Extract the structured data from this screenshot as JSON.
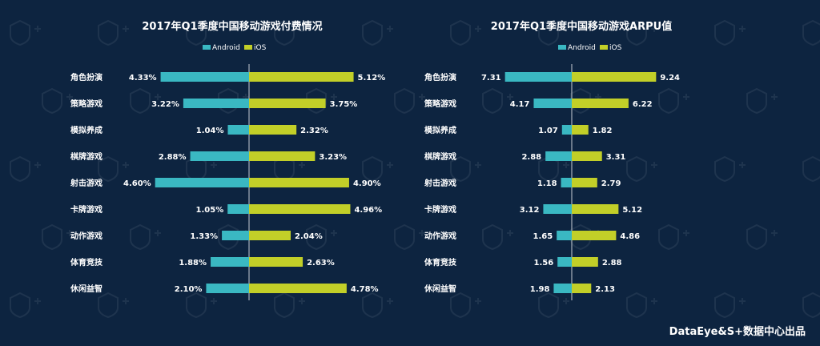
{
  "colors": {
    "background": "#0d2440",
    "android": "#3ab8c2",
    "ios": "#c2cf28",
    "axis": "#c7cdd3",
    "text": "#ffffff"
  },
  "credit": "DataEye&S+数据中心出品",
  "chart_data": [
    {
      "type": "bar",
      "orientation": "diverging-horizontal",
      "title": "2017年Q1季度中国移动游戏付费情况",
      "categories": [
        "角色扮演",
        "策略游戏",
        "模拟养成",
        "棋牌游戏",
        "射击游戏",
        "卡牌游戏",
        "动作游戏",
        "体育竞技",
        "休闲益智"
      ],
      "series": [
        {
          "name": "Android",
          "values": [
            4.33,
            3.22,
            1.04,
            2.88,
            4.6,
            1.05,
            1.33,
            1.88,
            2.1
          ],
          "labels": [
            "4.33%",
            "3.22%",
            "1.04%",
            "2.88%",
            "4.60%",
            "1.05%",
            "1.33%",
            "1.88%",
            "2.10%"
          ],
          "color": "#3ab8c2"
        },
        {
          "name": "iOS",
          "values": [
            5.12,
            3.75,
            2.32,
            3.23,
            4.9,
            4.96,
            2.04,
            2.63,
            4.78
          ],
          "labels": [
            "5.12%",
            "3.75%",
            "2.32%",
            "3.23%",
            "4.90%",
            "4.96%",
            "2.04%",
            "2.63%",
            "4.78%"
          ],
          "color": "#c2cf28"
        }
      ],
      "legend": "top"
    },
    {
      "type": "bar",
      "orientation": "diverging-horizontal",
      "title": "2017年Q1季度中国移动游戏ARPU值",
      "categories": [
        "角色扮演",
        "策略游戏",
        "模拟养成",
        "棋牌游戏",
        "射击游戏",
        "卡牌游戏",
        "动作游戏",
        "体育竞技",
        "休闲益智"
      ],
      "series": [
        {
          "name": "Android",
          "values": [
            7.31,
            4.17,
            1.07,
            2.88,
            1.18,
            3.12,
            1.65,
            1.56,
            1.98
          ],
          "labels": [
            "7.31",
            "4.17",
            "1.07",
            "2.88",
            "1.18",
            "3.12",
            "1.65",
            "1.56",
            "1.98"
          ],
          "color": "#3ab8c2"
        },
        {
          "name": "iOS",
          "values": [
            9.24,
            6.22,
            1.82,
            3.31,
            2.79,
            5.12,
            4.86,
            2.88,
            2.13
          ],
          "labels": [
            "9.24",
            "6.22",
            "1.82",
            "3.31",
            "2.79",
            "5.12",
            "4.86",
            "2.88",
            "2.13"
          ],
          "color": "#c2cf28"
        }
      ],
      "legend": "top"
    }
  ]
}
